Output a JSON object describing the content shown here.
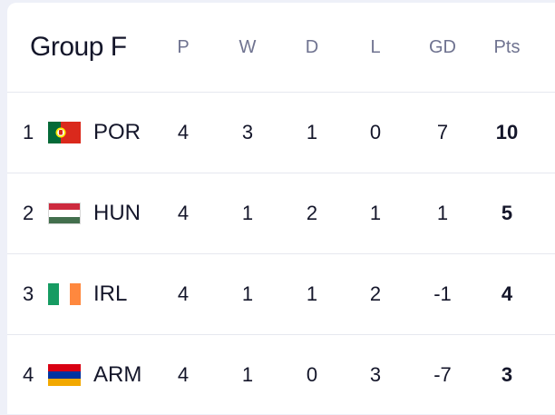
{
  "table": {
    "title": "Group F",
    "columns": [
      "P",
      "W",
      "D",
      "L",
      "GD",
      "Pts"
    ],
    "rows": [
      {
        "rank": "1",
        "team": "POR",
        "flag": "portugal-flag-icon",
        "P": "4",
        "W": "3",
        "D": "1",
        "L": "0",
        "GD": "7",
        "Pts": "10"
      },
      {
        "rank": "2",
        "team": "HUN",
        "flag": "hungary-flag-icon",
        "P": "4",
        "W": "1",
        "D": "2",
        "L": "1",
        "GD": "1",
        "Pts": "5"
      },
      {
        "rank": "3",
        "team": "IRL",
        "flag": "ireland-flag-icon",
        "P": "4",
        "W": "1",
        "D": "1",
        "L": "2",
        "GD": "-1",
        "Pts": "4"
      },
      {
        "rank": "4",
        "team": "ARM",
        "flag": "armenia-flag-icon",
        "P": "4",
        "W": "1",
        "D": "0",
        "L": "3",
        "GD": "-7",
        "Pts": "3"
      }
    ]
  },
  "colors": {
    "background": "#eef0f8",
    "panel": "#ffffff",
    "text": "#14162a",
    "header_text": "#6f7390",
    "divider": "#e6e8ef"
  }
}
